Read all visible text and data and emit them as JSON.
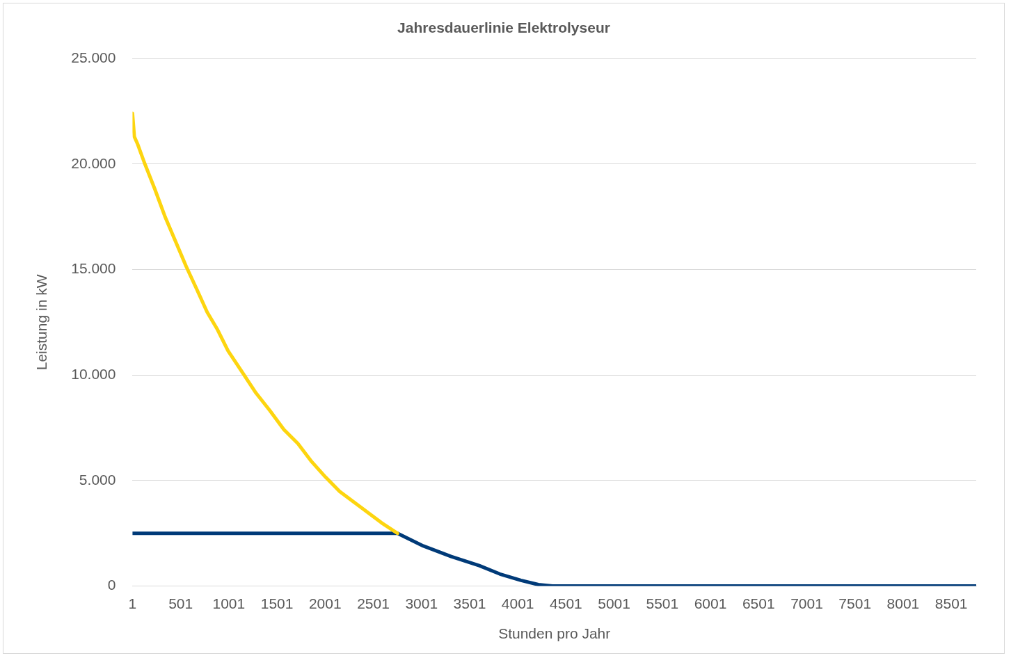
{
  "chart_data": {
    "type": "line",
    "title": "Jahresdauerlinie Elektrolyseur",
    "xlabel": "Stunden pro Jahr",
    "ylabel": "Leistung in kW",
    "xlim": [
      1,
      8760
    ],
    "xticks": [
      1,
      501,
      1001,
      1501,
      2001,
      2501,
      3001,
      3501,
      4001,
      4501,
      5001,
      5501,
      6001,
      6501,
      7001,
      7501,
      8001,
      8501
    ],
    "ylim": [
      0,
      25000
    ],
    "yticks": [
      {
        "value": 0,
        "label": "0"
      },
      {
        "value": 5000,
        "label": "5.000"
      },
      {
        "value": 10000,
        "label": "10.000"
      },
      {
        "value": 15000,
        "label": "15.000"
      },
      {
        "value": 20000,
        "label": "20.000"
      },
      {
        "value": 25000,
        "label": "25.000"
      }
    ],
    "grid": "y",
    "legend": false,
    "marker": "none",
    "line_style": "solid",
    "series": [
      {
        "color": "#fdd50f",
        "x": [
          1,
          20,
          52,
          124,
          233,
          341,
          450,
          558,
          667,
          776,
          884,
          993,
          1138,
          1283,
          1427,
          1572,
          1717,
          1862,
          2006,
          2151,
          2296,
          2441,
          2586,
          2752
        ],
        "values": [
          22400,
          21300,
          20970,
          20070,
          18810,
          17480,
          16310,
          15150,
          14080,
          12980,
          12150,
          11150,
          10150,
          9150,
          8320,
          7420,
          6760,
          5890,
          5160,
          4490,
          3990,
          3500,
          3000,
          2500
        ]
      },
      {
        "color": "#003a78",
        "x": [
          1,
          2752,
          3020,
          3310,
          3600,
          3816,
          4034,
          4215,
          4360,
          8760
        ],
        "values": [
          2500,
          2500,
          1900,
          1400,
          970,
          570,
          270,
          70,
          0,
          0
        ]
      }
    ]
  }
}
